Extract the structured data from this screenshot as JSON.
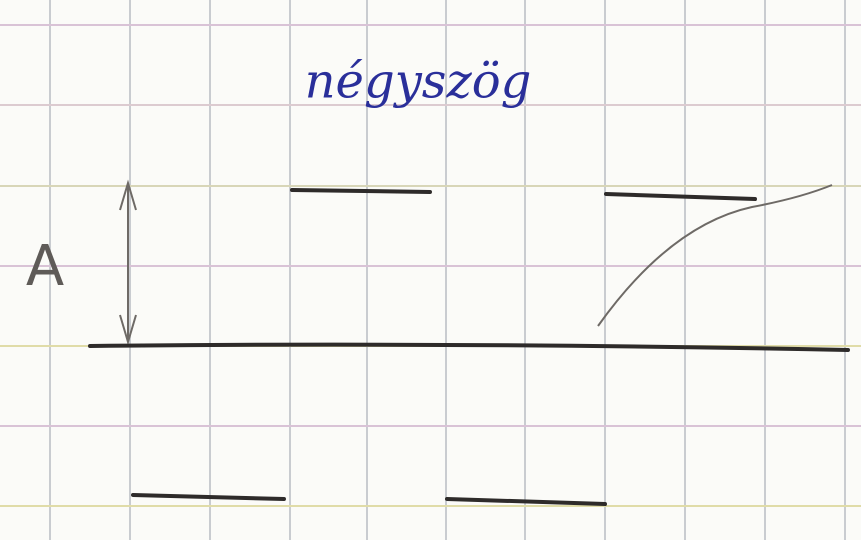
{
  "title": "négyszög",
  "amplitude_label": "A"
}
